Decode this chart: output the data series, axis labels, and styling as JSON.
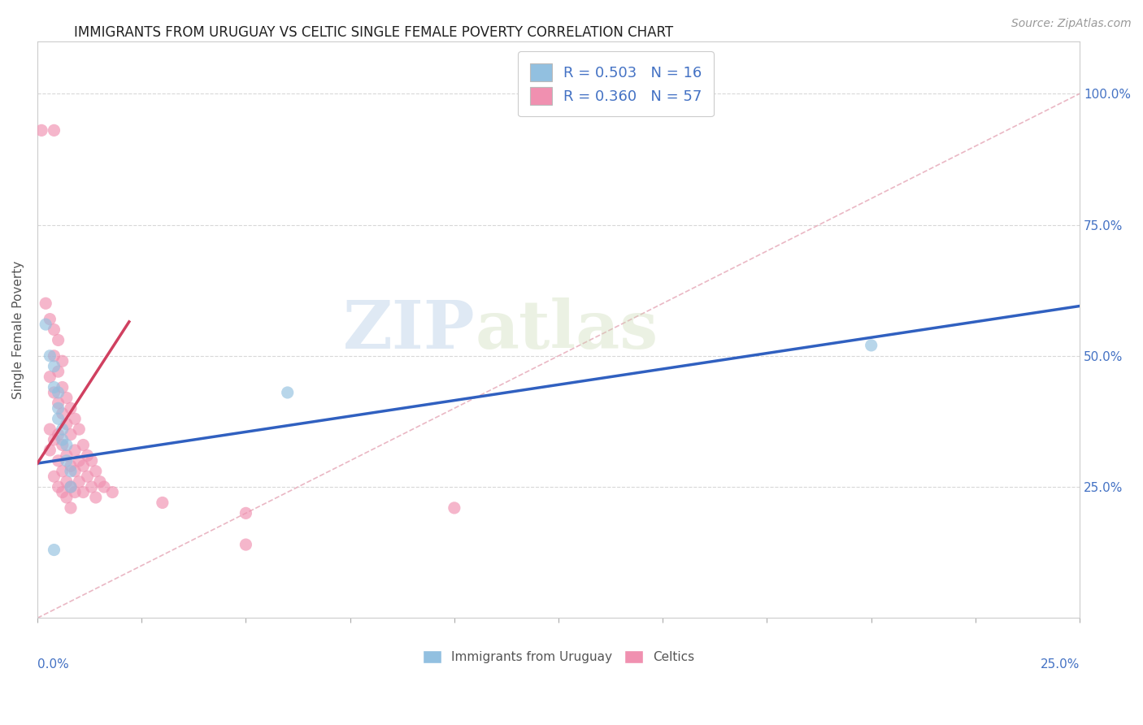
{
  "title": "IMMIGRANTS FROM URUGUAY VS CELTIC SINGLE FEMALE POVERTY CORRELATION CHART",
  "source": "Source: ZipAtlas.com",
  "ylabel": "Single Female Poverty",
  "ytick_vals": [
    0.25,
    0.5,
    0.75,
    1.0
  ],
  "ytick_labels": [
    "25.0%",
    "50.0%",
    "75.0%",
    "100.0%"
  ],
  "xrange": [
    0.0,
    0.25
  ],
  "yrange": [
    0.0,
    1.1
  ],
  "watermark_zip": "ZIP",
  "watermark_atlas": "atlas",
  "blue_dot_color": "#92c0e0",
  "pink_dot_color": "#f090b0",
  "trend_blue_color": "#3060c0",
  "trend_pink_color": "#d04060",
  "diag_color": "#e8b0be",
  "grid_color": "#d8d8d8",
  "right_axis_color": "#4472c4",
  "bottom_legend_blue_label": "Immigrants from Uruguay",
  "bottom_legend_pink_label": "Celtics",
  "legend_blue_label": "R = 0.503   N = 16",
  "legend_pink_label": "R = 0.360   N = 57",
  "blue_trend_x0": 0.0,
  "blue_trend_y0": 0.295,
  "blue_trend_x1": 0.25,
  "blue_trend_y1": 0.595,
  "pink_trend_x0": 0.0,
  "pink_trend_y0": 0.295,
  "pink_trend_x1": 0.022,
  "pink_trend_y1": 0.565,
  "uruguay_points": [
    [
      0.002,
      0.56
    ],
    [
      0.003,
      0.5
    ],
    [
      0.004,
      0.48
    ],
    [
      0.004,
      0.44
    ],
    [
      0.005,
      0.43
    ],
    [
      0.005,
      0.4
    ],
    [
      0.005,
      0.38
    ],
    [
      0.006,
      0.36
    ],
    [
      0.006,
      0.34
    ],
    [
      0.007,
      0.33
    ],
    [
      0.007,
      0.3
    ],
    [
      0.008,
      0.28
    ],
    [
      0.008,
      0.25
    ],
    [
      0.06,
      0.43
    ],
    [
      0.2,
      0.52
    ],
    [
      0.004,
      0.13
    ]
  ],
  "celtic_points": [
    [
      0.001,
      0.93
    ],
    [
      0.004,
      0.93
    ],
    [
      0.002,
      0.6
    ],
    [
      0.003,
      0.57
    ],
    [
      0.004,
      0.55
    ],
    [
      0.005,
      0.53
    ],
    [
      0.004,
      0.5
    ],
    [
      0.006,
      0.49
    ],
    [
      0.005,
      0.47
    ],
    [
      0.003,
      0.46
    ],
    [
      0.006,
      0.44
    ],
    [
      0.004,
      0.43
    ],
    [
      0.007,
      0.42
    ],
    [
      0.005,
      0.41
    ],
    [
      0.008,
      0.4
    ],
    [
      0.006,
      0.39
    ],
    [
      0.009,
      0.38
    ],
    [
      0.007,
      0.37
    ],
    [
      0.003,
      0.36
    ],
    [
      0.01,
      0.36
    ],
    [
      0.005,
      0.35
    ],
    [
      0.008,
      0.35
    ],
    [
      0.004,
      0.34
    ],
    [
      0.011,
      0.33
    ],
    [
      0.006,
      0.33
    ],
    [
      0.009,
      0.32
    ],
    [
      0.003,
      0.32
    ],
    [
      0.012,
      0.31
    ],
    [
      0.007,
      0.31
    ],
    [
      0.01,
      0.3
    ],
    [
      0.005,
      0.3
    ],
    [
      0.013,
      0.3
    ],
    [
      0.008,
      0.29
    ],
    [
      0.011,
      0.29
    ],
    [
      0.006,
      0.28
    ],
    [
      0.014,
      0.28
    ],
    [
      0.009,
      0.28
    ],
    [
      0.004,
      0.27
    ],
    [
      0.012,
      0.27
    ],
    [
      0.007,
      0.26
    ],
    [
      0.015,
      0.26
    ],
    [
      0.01,
      0.26
    ],
    [
      0.005,
      0.25
    ],
    [
      0.013,
      0.25
    ],
    [
      0.008,
      0.25
    ],
    [
      0.016,
      0.25
    ],
    [
      0.006,
      0.24
    ],
    [
      0.011,
      0.24
    ],
    [
      0.009,
      0.24
    ],
    [
      0.018,
      0.24
    ],
    [
      0.007,
      0.23
    ],
    [
      0.014,
      0.23
    ],
    [
      0.03,
      0.22
    ],
    [
      0.1,
      0.21
    ],
    [
      0.008,
      0.21
    ],
    [
      0.05,
      0.2
    ],
    [
      0.05,
      0.14
    ]
  ]
}
